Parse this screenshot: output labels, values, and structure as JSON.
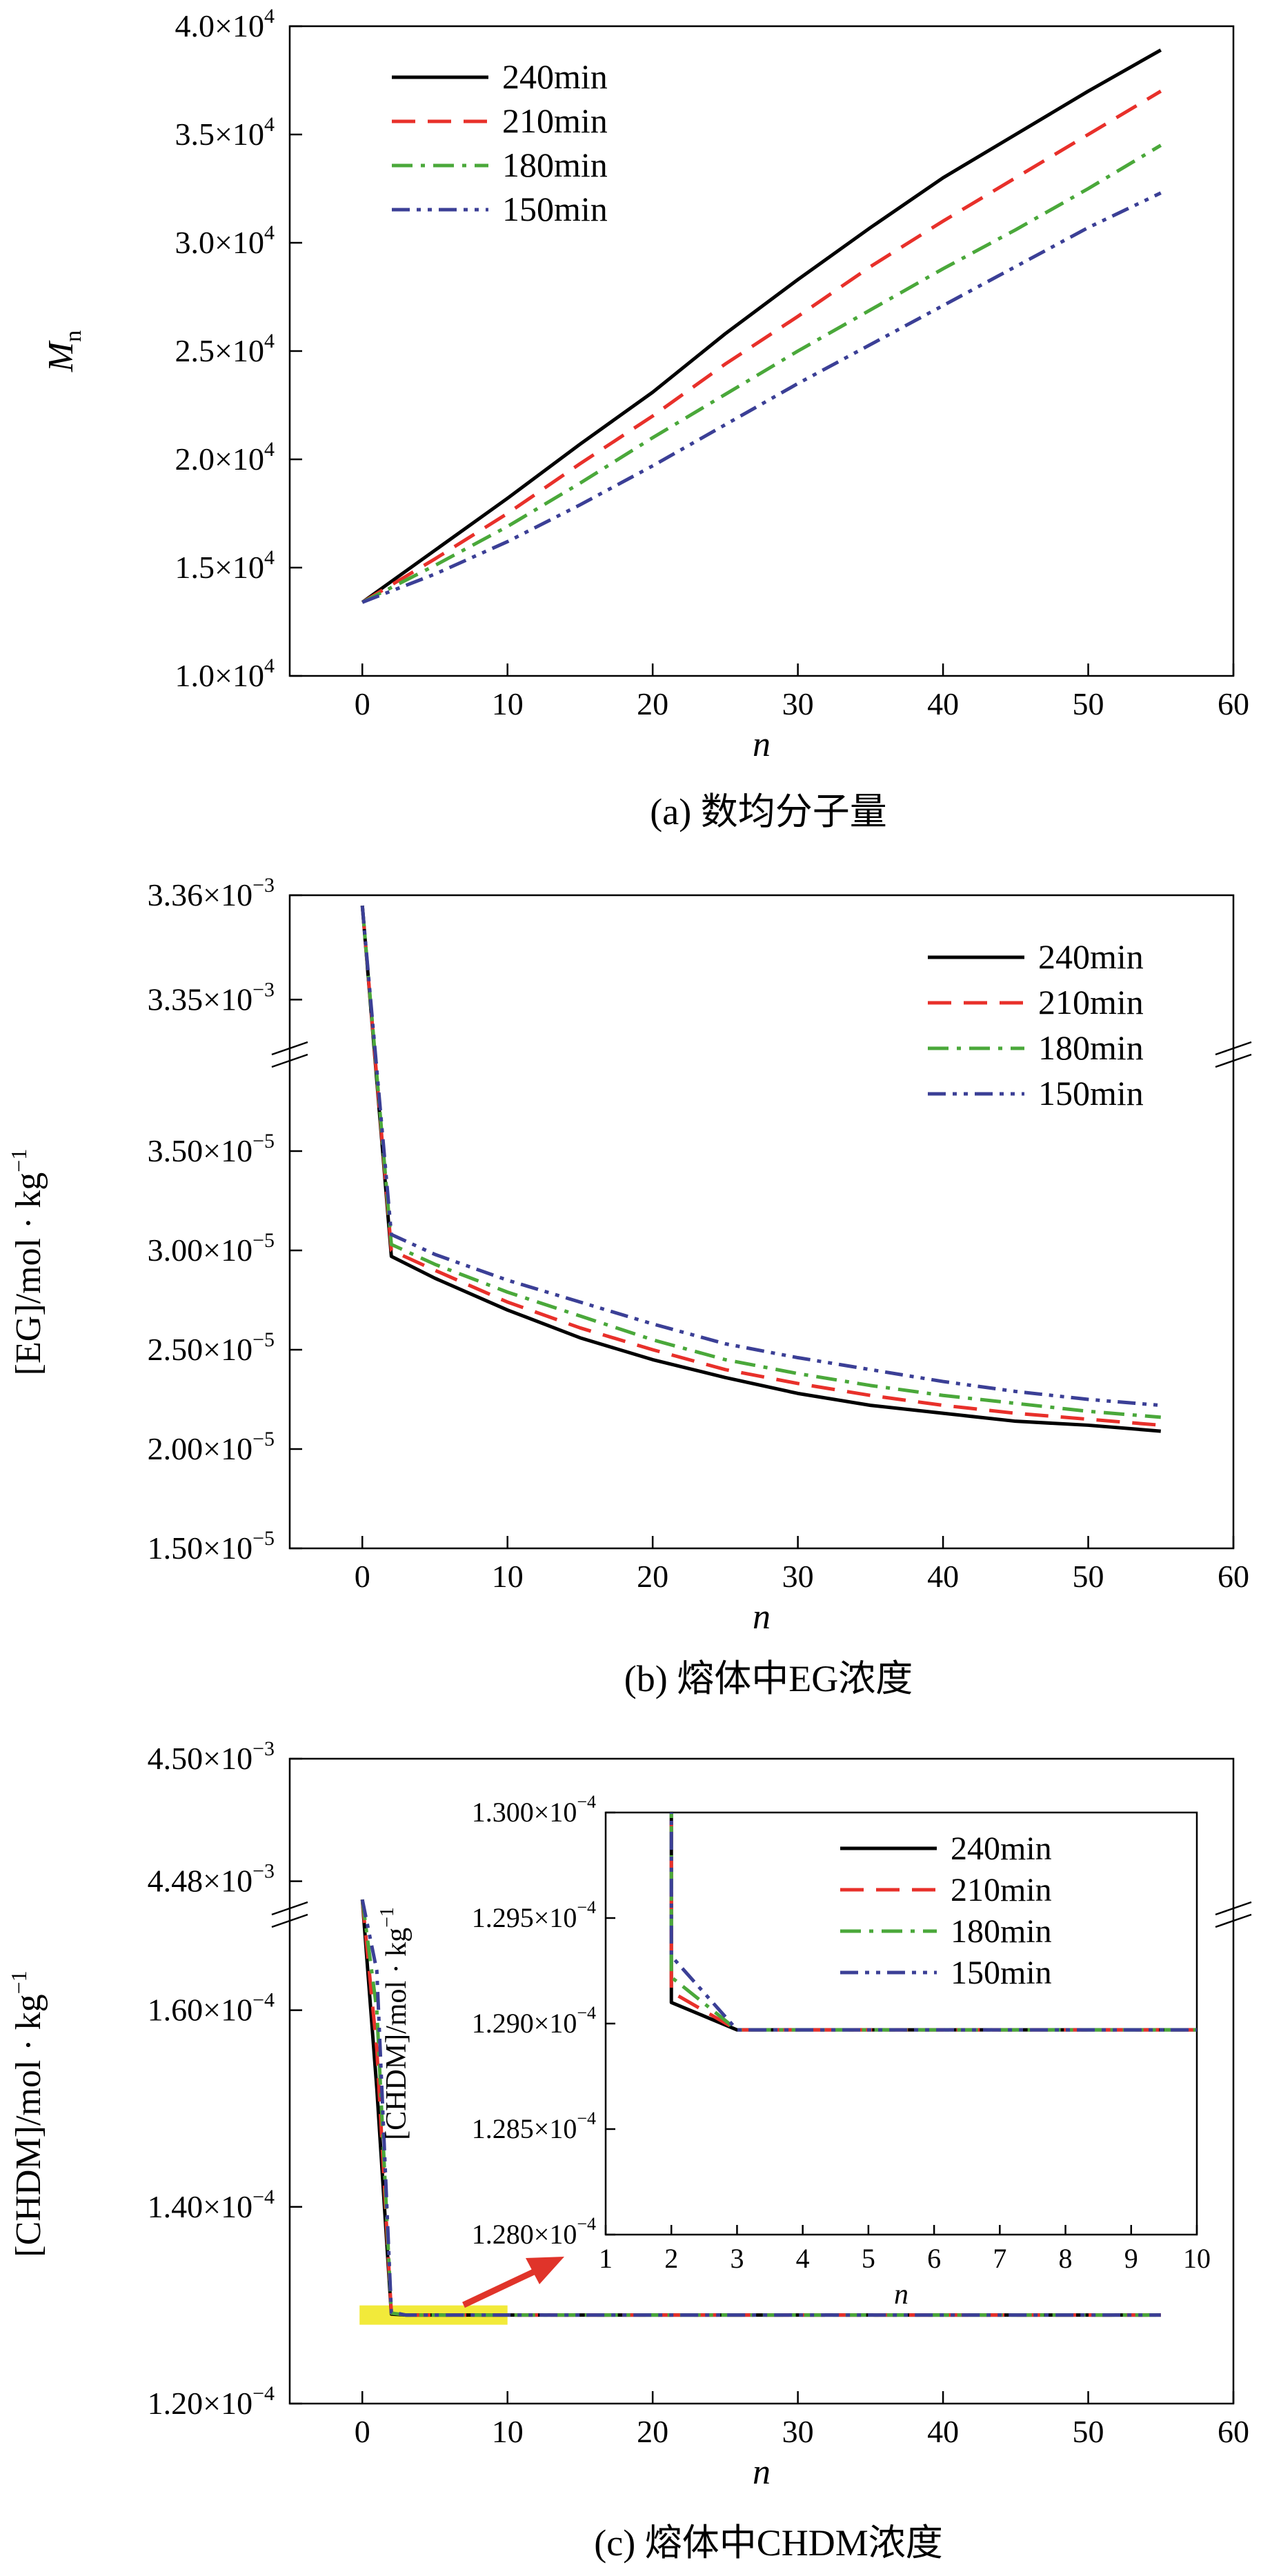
{
  "chart_data": [
    {
      "type": "line",
      "caption": "(a) 数均分子量",
      "xlabel": "n",
      "ylabel": "M",
      "ylabel_sub": "n",
      "xlim": [
        -5,
        60
      ],
      "ylim": [
        10000,
        40000
      ],
      "x_ticks": [
        "0",
        "10",
        "20",
        "30",
        "40",
        "50",
        "60"
      ],
      "y_ticks": [
        {
          "m": "1.0×10",
          "e": "4"
        },
        {
          "m": "1.5×10",
          "e": "4"
        },
        {
          "m": "2.0×10",
          "e": "4"
        },
        {
          "m": "2.5×10",
          "e": "4"
        },
        {
          "m": "3.0×10",
          "e": "4"
        },
        {
          "m": "3.5×10",
          "e": "4"
        },
        {
          "m": "4.0×10",
          "e": "4"
        }
      ],
      "legend_position": "top-left",
      "x": [
        0,
        5,
        10,
        15,
        20,
        25,
        30,
        35,
        40,
        45,
        50,
        55
      ],
      "series": [
        {
          "name": "240min",
          "color": "#000000",
          "dash": "none",
          "values": [
            13400,
            15800,
            18200,
            20700,
            23100,
            25800,
            28300,
            30700,
            33000,
            35000,
            37000,
            38900
          ]
        },
        {
          "name": "210min",
          "color": "#e8302a",
          "dash": "dash",
          "values": [
            13400,
            15400,
            17500,
            19800,
            22000,
            24400,
            26600,
            28900,
            31000,
            33000,
            35000,
            37000
          ]
        },
        {
          "name": "180min",
          "color": "#4aa83a",
          "dash": "dashdot",
          "values": [
            13400,
            15100,
            16900,
            18900,
            21000,
            23000,
            25000,
            26900,
            28800,
            30600,
            32500,
            34500
          ]
        },
        {
          "name": "150min",
          "color": "#3b3f96",
          "dash": "dashdotdot",
          "values": [
            13400,
            14700,
            16200,
            17900,
            19700,
            21600,
            23500,
            25300,
            27100,
            28900,
            30700,
            32300
          ]
        }
      ]
    },
    {
      "type": "line",
      "caption": "(b) 熔体中EG浓度",
      "xlabel": "n",
      "ylabel": "[EG]/mol · kg",
      "ylabel_sup": "−1",
      "broken_y_axis": true,
      "xlim": [
        -5,
        60
      ],
      "ylim_lower": [
        1.5e-05,
        4e-05
      ],
      "ylim_upper": [
        0.003345,
        0.00336
      ],
      "x_ticks": [
        "0",
        "10",
        "20",
        "30",
        "40",
        "50",
        "60"
      ],
      "y_ticks_lower": [
        {
          "m": "1.50×10",
          "e": "−5"
        },
        {
          "m": "2.00×10",
          "e": "−5"
        },
        {
          "m": "2.50×10",
          "e": "−5"
        },
        {
          "m": "3.00×10",
          "e": "−5"
        },
        {
          "m": "3.50×10",
          "e": "−5"
        }
      ],
      "y_ticks_upper": [
        {
          "m": "3.35×10",
          "e": "−3"
        },
        {
          "m": "3.36×10",
          "e": "−3"
        }
      ],
      "legend_position": "top-right",
      "x": [
        0,
        2,
        5,
        10,
        15,
        20,
        25,
        30,
        35,
        40,
        45,
        50,
        55
      ],
      "series": [
        {
          "name": "240min",
          "color": "#000000",
          "dash": "none",
          "values": [
            0.003359,
            2.97e-05,
            2.86e-05,
            2.7e-05,
            2.56e-05,
            2.45e-05,
            2.36e-05,
            2.28e-05,
            2.22e-05,
            2.18e-05,
            2.14e-05,
            2.12e-05,
            2.09e-05
          ]
        },
        {
          "name": "210min",
          "color": "#e8302a",
          "dash": "dash",
          "values": [
            0.003359,
            3e-05,
            2.9e-05,
            2.74e-05,
            2.61e-05,
            2.5e-05,
            2.4e-05,
            2.33e-05,
            2.27e-05,
            2.22e-05,
            2.18e-05,
            2.15e-05,
            2.12e-05
          ]
        },
        {
          "name": "180min",
          "color": "#4aa83a",
          "dash": "dashdot",
          "values": [
            0.003359,
            3.03e-05,
            2.93e-05,
            2.79e-05,
            2.67e-05,
            2.55e-05,
            2.45e-05,
            2.38e-05,
            2.32e-05,
            2.27e-05,
            2.23e-05,
            2.19e-05,
            2.16e-05
          ]
        },
        {
          "name": "150min",
          "color": "#3b3f96",
          "dash": "dashdotdot",
          "values": [
            0.003359,
            3.08e-05,
            2.98e-05,
            2.85e-05,
            2.74e-05,
            2.63e-05,
            2.53e-05,
            2.46e-05,
            2.4e-05,
            2.34e-05,
            2.29e-05,
            2.25e-05,
            2.22e-05
          ]
        }
      ]
    },
    {
      "type": "line",
      "caption": "(c) 熔体中CHDM浓度",
      "xlabel": "n",
      "ylabel": "[CHDM]/mol · kg",
      "ylabel_sup": "−1",
      "broken_y_axis": true,
      "xlim": [
        -5,
        60
      ],
      "ylim_lower": [
        0.00012,
        0.00017
      ],
      "ylim_upper": [
        0.004475,
        0.0045
      ],
      "x_ticks": [
        "0",
        "10",
        "20",
        "30",
        "40",
        "50",
        "60"
      ],
      "y_ticks_lower": [
        {
          "m": "1.20×10",
          "e": "−4"
        },
        {
          "m": "1.40×10",
          "e": "−4"
        },
        {
          "m": "1.60×10",
          "e": "−4"
        }
      ],
      "y_ticks_upper": [
        {
          "m": "4.48×10",
          "e": "−3"
        },
        {
          "m": "4.50×10",
          "e": "−3"
        }
      ],
      "x": [
        0,
        1,
        2,
        3,
        55
      ],
      "series": [
        {
          "name": "240min",
          "color": "#000000",
          "dash": "none",
          "values": [
            0.004477,
            0.000152,
            0.0001291,
            0.000129,
            0.000129
          ]
        },
        {
          "name": "210min",
          "color": "#e8302a",
          "dash": "dash",
          "values": [
            0.004477,
            0.000156,
            0.0001292,
            0.000129,
            0.000129
          ]
        },
        {
          "name": "180min",
          "color": "#4aa83a",
          "dash": "dashdot",
          "values": [
            0.004477,
            0.00016,
            0.0001292,
            0.000129,
            0.000129
          ]
        },
        {
          "name": "150min",
          "color": "#3b3f96",
          "dash": "dashdotdot",
          "values": [
            0.004477,
            0.000164,
            0.0001293,
            0.000129,
            0.000129
          ]
        }
      ],
      "highlight": {
        "x": [
          0,
          10
        ],
        "color": "#f2ea3a"
      },
      "inset": {
        "xlabel": "n",
        "ylabel": "[CHDM]/mol · kg",
        "ylabel_sup": "−1",
        "xlim": [
          1,
          10
        ],
        "ylim": [
          0.000128,
          0.00013
        ],
        "x_ticks": [
          "1",
          "2",
          "3",
          "4",
          "5",
          "6",
          "7",
          "8",
          "9",
          "10"
        ],
        "y_ticks": [
          {
            "m": "1.280×10",
            "e": "−4"
          },
          {
            "m": "1.285×10",
            "e": "−4"
          },
          {
            "m": "1.290×10",
            "e": "−4"
          },
          {
            "m": "1.295×10",
            "e": "−4"
          },
          {
            "m": "1.300×10",
            "e": "−4"
          }
        ],
        "legend_position": "top-right",
        "x": [
          2,
          3,
          10
        ],
        "series": [
          {
            "name": "240min",
            "values": [
              0.0001291,
              0.00012897,
              0.00012897
            ]
          },
          {
            "name": "210min",
            "values": [
              0.00012915,
              0.00012897,
              0.00012897
            ]
          },
          {
            "name": "180min",
            "values": [
              0.00012922,
              0.00012897,
              0.00012897
            ]
          },
          {
            "name": "150min",
            "values": [
              0.00012932,
              0.00012897,
              0.00012897
            ]
          }
        ]
      }
    }
  ]
}
